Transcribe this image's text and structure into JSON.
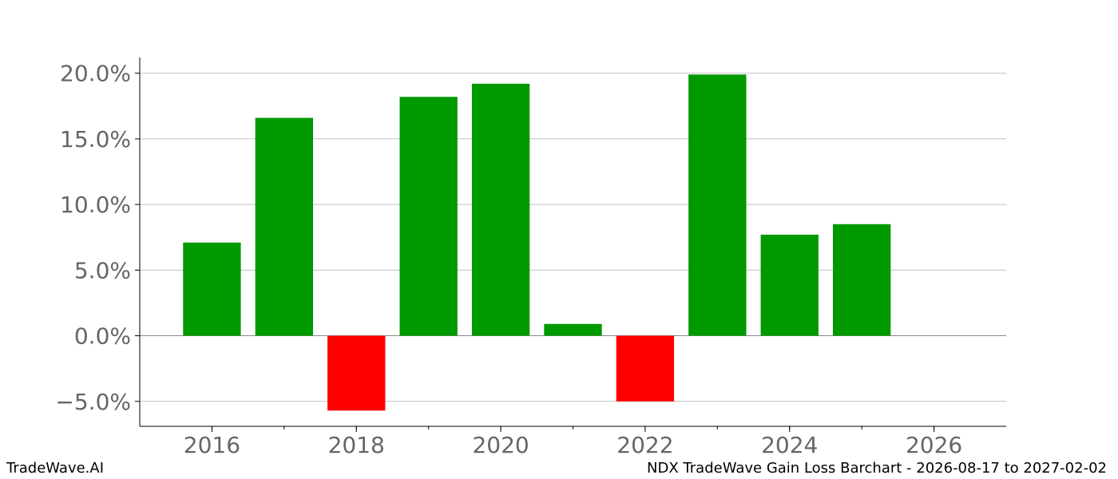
{
  "chart_data": {
    "type": "bar",
    "x": [
      2016,
      2017,
      2018,
      2019,
      2020,
      2021,
      2022,
      2023,
      2024,
      2025
    ],
    "values": [
      7.1,
      16.6,
      -5.7,
      18.2,
      19.2,
      0.9,
      -5.0,
      19.9,
      7.7,
      8.5
    ],
    "y_ticks": [
      -5.0,
      0.0,
      5.0,
      10.0,
      15.0,
      20.0
    ],
    "y_tick_labels": [
      "−5.0%",
      "0.0%",
      "5.0%",
      "10.0%",
      "15.0%",
      "20.0%"
    ],
    "x_ticks": [
      2016,
      2018,
      2020,
      2022,
      2024,
      2026
    ],
    "x_tick_labels": [
      "2016",
      "2018",
      "2020",
      "2022",
      "2024",
      "2026"
    ],
    "xlim": [
      2015,
      2027
    ],
    "ylim": [
      -6.9,
      21.2
    ],
    "grid": "horizontal",
    "colors": {
      "positive": "#009900",
      "negative": "#ff0000",
      "grid": "#c0c0c0",
      "tick_text": "#666666",
      "zero_line": "#888888"
    },
    "title": "",
    "xlabel": "",
    "ylabel": ""
  },
  "footer": {
    "left": "TradeWave.AI",
    "right": "NDX TradeWave Gain Loss Barchart - 2026-08-17 to 2027-02-02"
  }
}
